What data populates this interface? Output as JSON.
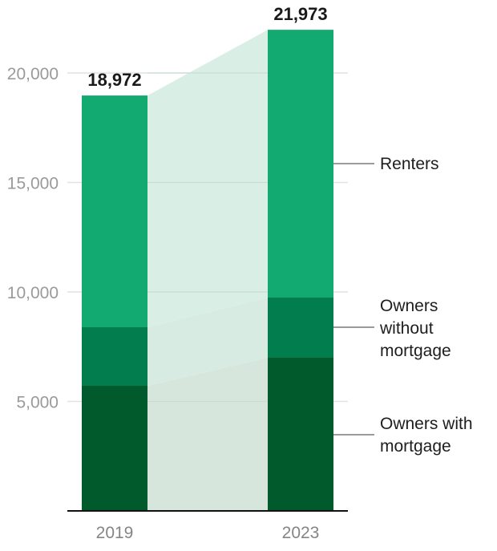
{
  "chart_data": {
    "type": "bar",
    "stacked": true,
    "title": "",
    "xlabel": "",
    "ylabel": "",
    "ylim": [
      0,
      22000
    ],
    "yticks": [
      5000,
      10000,
      15000,
      20000
    ],
    "ytick_labels": [
      "5,000",
      "10,000",
      "15,000",
      "20,000"
    ],
    "grid": true,
    "legend_position": "right (direct labels)",
    "categories": [
      "2019",
      "2023"
    ],
    "totals": [
      18972,
      21973
    ],
    "total_labels": [
      "18,972",
      "21,973"
    ],
    "series": [
      {
        "name": "Owners with mortgage",
        "color": "#015a2b",
        "values": [
          5714,
          6996
        ]
      },
      {
        "name": "Owners without mortgage",
        "color": "#027d4d",
        "values": [
          2674,
          2747
        ]
      },
      {
        "name": "Renters",
        "color": "#13aa71",
        "values": [
          10584,
          12230
        ]
      }
    ],
    "connector_color": "#d8efe6",
    "legend_labels": {
      "renters": [
        "Renters"
      ],
      "owners_without": [
        "Owners",
        "without",
        "mortgage"
      ],
      "owners_with": [
        "Owners with",
        "mortgage"
      ]
    }
  }
}
